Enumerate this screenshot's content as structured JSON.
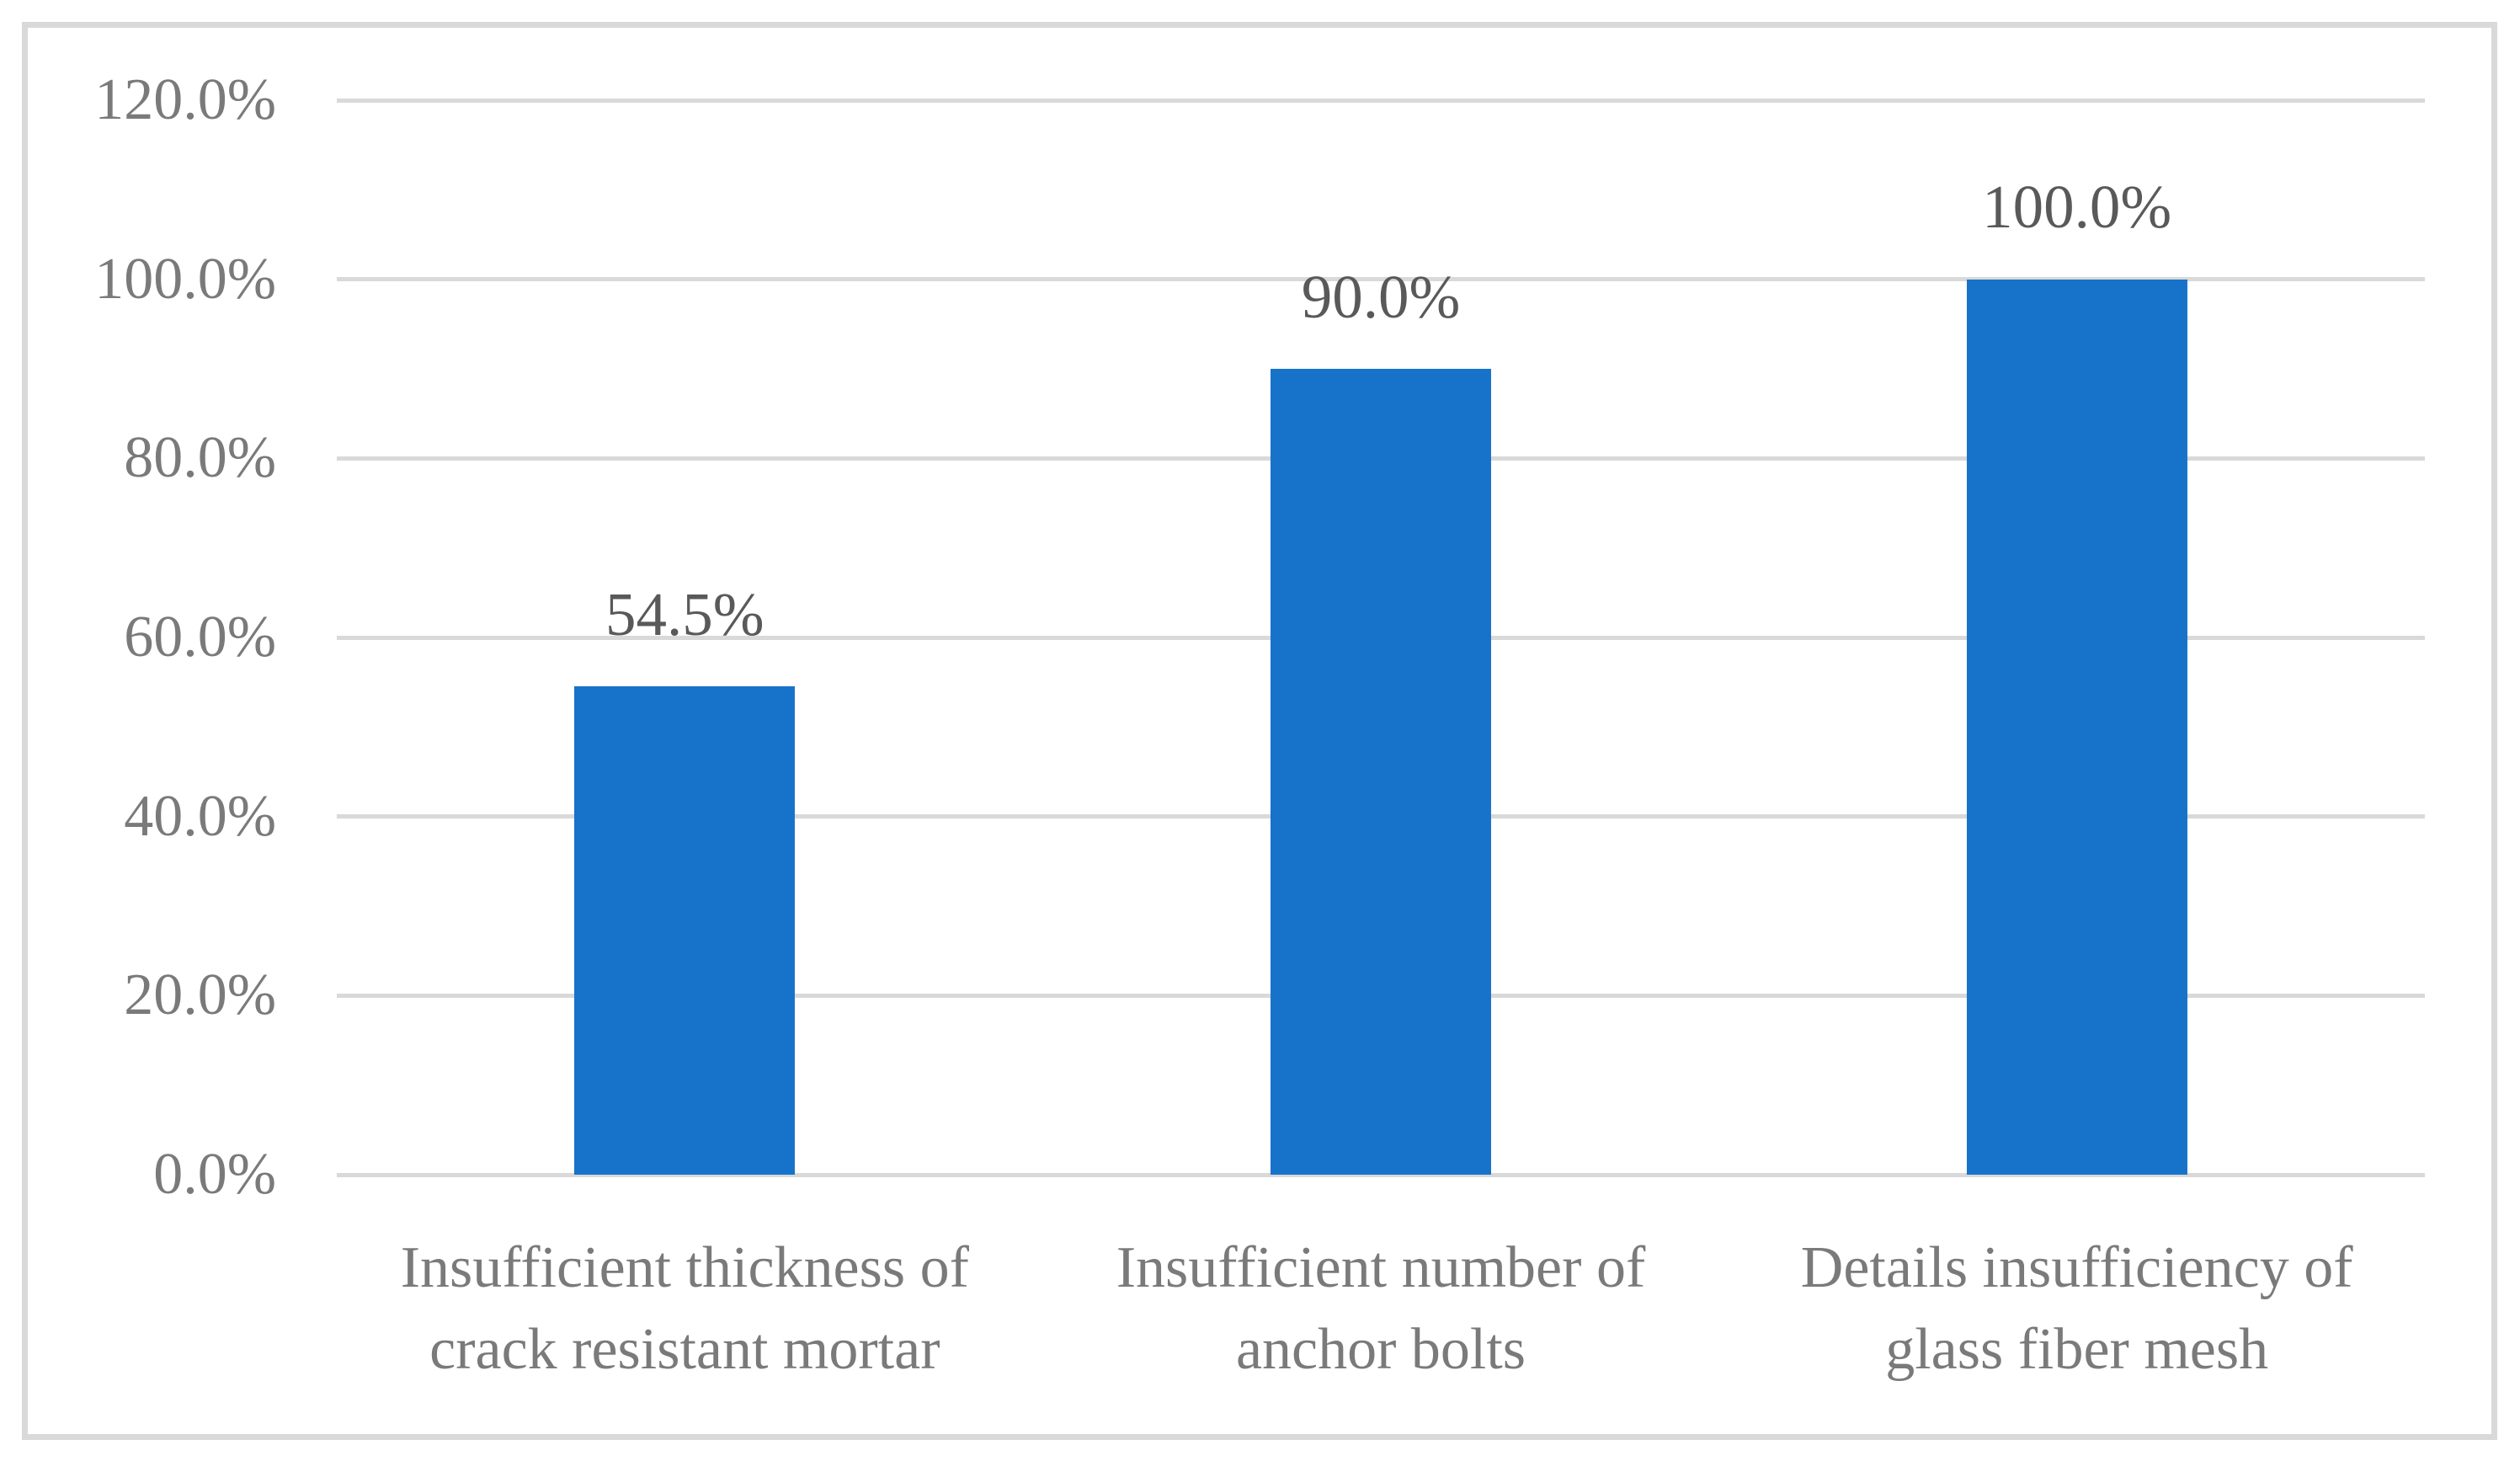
{
  "figure": {
    "background": "#FFFFFF",
    "frame_border_color": "#D9D9D9"
  },
  "chart_data": {
    "type": "bar",
    "title": "",
    "categories": [
      "Insufficient thickness of crack resistant mortar",
      "Insufficient number of anchor bolts",
      "Details insufficiency of glass fiber mesh"
    ],
    "category_lines": [
      [
        "Insufficient thickness of",
        "crack resistant mortar"
      ],
      [
        "Insufficient number of",
        "anchor bolts"
      ],
      [
        "Details insufficiency of",
        "glass fiber mesh"
      ]
    ],
    "values": [
      54.5,
      90.0,
      100.0
    ],
    "data_labels": [
      "54.5%",
      "90.0%",
      "100.0%"
    ],
    "y_axis": {
      "min": 0,
      "max": 120,
      "step": 20,
      "tick_labels": [
        "0.0%",
        "20.0%",
        "40.0%",
        "60.0%",
        "80.0%",
        "100.0%",
        "120.0%"
      ]
    },
    "xlabel": "",
    "ylabel": "",
    "grid": true,
    "legend_position": "none",
    "colors": {
      "bar": "#1773C9",
      "gridline": "#D9D9D9",
      "axis_label_text": "#7A7A7A",
      "category_label_text": "#7A7A7A",
      "data_label_text": "#595959"
    }
  }
}
